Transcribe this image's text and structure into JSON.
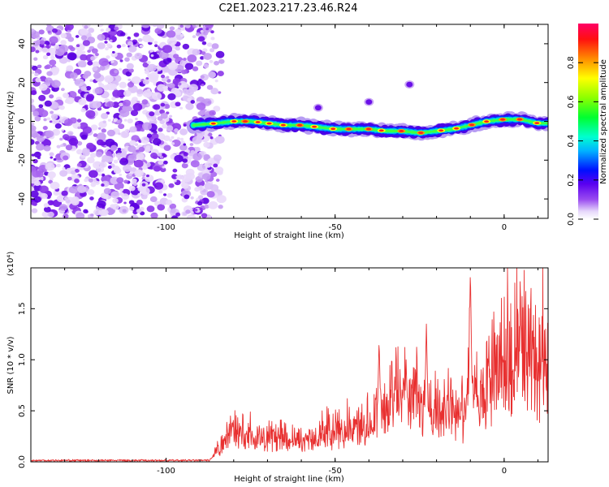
{
  "title": "C2E1.2023.217.23.46.R24",
  "colors": {
    "snr_line": "#e83030",
    "track_core": "#ff2a2a",
    "noise": "#7a1fe6"
  },
  "chart_data": [
    {
      "type": "heatmap",
      "name": "spectrogram",
      "xlabel": "Height of straight line (km)",
      "ylabel": "Frequency (Hz)",
      "xlim": [
        -140,
        13
      ],
      "ylim": [
        -50,
        50
      ],
      "xticks": [
        -100,
        -50,
        0
      ],
      "xtick_labels": [
        "-100",
        "-50",
        "0"
      ],
      "yticks": [
        -40,
        -20,
        0,
        20,
        40
      ],
      "ytick_labels": [
        "-40",
        "-20",
        "0",
        "20",
        "40"
      ],
      "noise_region": {
        "x_range": [
          -140,
          -86
        ],
        "description_free": true
      },
      "track": {
        "x": [
          -92,
          -85,
          -80,
          -75,
          -70,
          -65,
          -60,
          -55,
          -50,
          -45,
          -40,
          -35,
          -30,
          -25,
          -20,
          -15,
          -10,
          -5,
          0,
          5,
          10,
          13
        ],
        "y": [
          -2,
          -1,
          0,
          0,
          -1,
          -2,
          -2,
          -3,
          -4,
          -4,
          -4,
          -5,
          -5,
          -6,
          -5,
          -4,
          -2,
          0,
          1,
          1,
          -1,
          -1
        ]
      },
      "echoes": [
        {
          "x": -28,
          "y": 19
        },
        {
          "x": -40,
          "y": 10
        },
        {
          "x": -55,
          "y": 7
        }
      ],
      "colorbar": {
        "label": "Normalized spectral amplitude",
        "range": [
          0,
          1
        ],
        "ticks": [
          0.0,
          0.2,
          0.4,
          0.6,
          0.8
        ],
        "tick_labels": [
          "0.0",
          "0.2",
          "0.4",
          "0.6",
          "0.8"
        ]
      }
    },
    {
      "type": "line",
      "name": "snr",
      "xlabel": "Height of straight line (km)",
      "ylabel": "SNR (10 * v/v)",
      "scale_label": "(x10⁴)",
      "xlim": [
        -140,
        13
      ],
      "ylim": [
        0,
        1.9
      ],
      "xticks": [
        -100,
        -50,
        0
      ],
      "xtick_labels": [
        "-100",
        "-50",
        "0"
      ],
      "yticks": [
        0.0,
        0.5,
        1.0,
        1.5
      ],
      "ytick_labels": [
        "0.0",
        "0.5",
        "1.0",
        "1.5"
      ],
      "envelope": {
        "x": [
          -140,
          -100,
          -87,
          -84,
          -81,
          -76,
          -70,
          -65,
          -60,
          -55,
          -50,
          -45,
          -40,
          -37,
          -34,
          -30,
          -27,
          -24,
          -20,
          -15,
          -12,
          -10,
          -8,
          -5,
          -2,
          0,
          3,
          6,
          9,
          11,
          13
        ],
        "y": [
          0.01,
          0.01,
          0.02,
          0.15,
          0.32,
          0.28,
          0.25,
          0.27,
          0.22,
          0.3,
          0.32,
          0.36,
          0.4,
          0.55,
          0.62,
          0.75,
          0.7,
          0.6,
          0.5,
          0.55,
          0.45,
          0.9,
          0.6,
          0.75,
          1.05,
          1.1,
          1.2,
          1.1,
          1.05,
          1.1,
          1.1
        ]
      },
      "peaks": [
        {
          "x": -37,
          "y": 1.2
        },
        {
          "x": -29,
          "y": 1.0
        },
        {
          "x": -23,
          "y": 1.35
        },
        {
          "x": -10,
          "y": 1.9
        },
        {
          "x": 5,
          "y": 1.42
        }
      ]
    }
  ]
}
